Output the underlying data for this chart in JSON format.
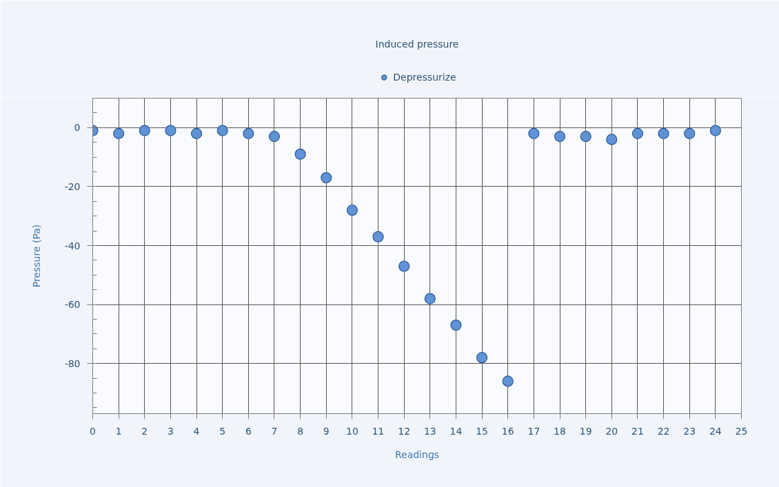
{
  "chart_data": {
    "type": "scatter",
    "title": "Induced pressure",
    "xlabel": "Readings",
    "ylabel": "Pressure (Pa)",
    "x": [
      0,
      1,
      2,
      3,
      4,
      5,
      6,
      7,
      8,
      9,
      10,
      11,
      12,
      13,
      14,
      15,
      16,
      17,
      18,
      19,
      20,
      21,
      22,
      23,
      24
    ],
    "series": [
      {
        "name": "Depressurize",
        "color": "#5f93d6",
        "values": [
          -1,
          -2,
          -1,
          -1,
          -2,
          -1,
          -2,
          -3,
          -9,
          -17,
          -28,
          -37,
          -47,
          -58,
          -67,
          -78,
          -86,
          -2,
          -3,
          -3,
          -4,
          -2,
          -2,
          -2,
          -1
        ]
      }
    ],
    "xlim": [
      0,
      25
    ],
    "ylim": [
      -97,
      10
    ],
    "xticks": [
      0,
      1,
      2,
      3,
      4,
      5,
      6,
      7,
      8,
      9,
      10,
      11,
      12,
      13,
      14,
      15,
      16,
      17,
      18,
      19,
      20,
      21,
      22,
      23,
      24,
      25
    ],
    "yticks": [
      -80,
      -60,
      -40,
      -20,
      0
    ],
    "grid": true,
    "legend": "top",
    "marker": "circle"
  }
}
